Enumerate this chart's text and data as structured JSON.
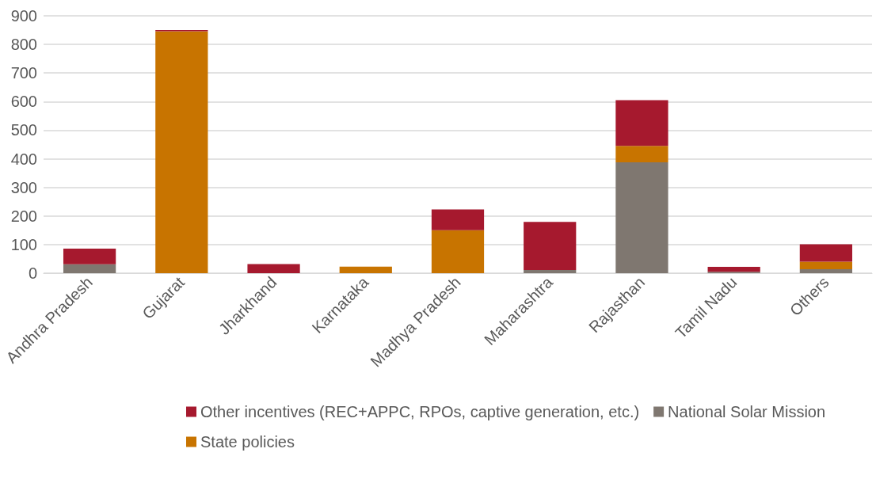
{
  "chart_data": {
    "type": "bar",
    "stacked": true,
    "categories": [
      "Andhra Pradesh",
      "Gujarat",
      "Jharkhand",
      "Karnataka",
      "Madhya Pradesh",
      "Maharashtra",
      "Rajasthan",
      "Tamil Nadu",
      "Others"
    ],
    "series": [
      {
        "name": "National Solar Mission",
        "color": "#7f7770",
        "values": [
          31,
          0,
          0,
          0,
          0,
          11,
          388,
          5,
          14
        ]
      },
      {
        "name": "State policies",
        "color": "#c87400",
        "values": [
          0,
          846,
          0,
          23,
          150,
          0,
          57,
          0,
          26
        ]
      },
      {
        "name": "Other incentives (REC+APPC, RPOs, captive generation, etc.)",
        "color": "#a6192e",
        "values": [
          55,
          4,
          32,
          0,
          73,
          168,
          160,
          17,
          61
        ]
      }
    ],
    "ylim": [
      0,
      900
    ],
    "yticks": [
      0,
      100,
      200,
      300,
      400,
      500,
      600,
      700,
      800,
      900
    ],
    "grid": "y",
    "legend": "bottom"
  }
}
